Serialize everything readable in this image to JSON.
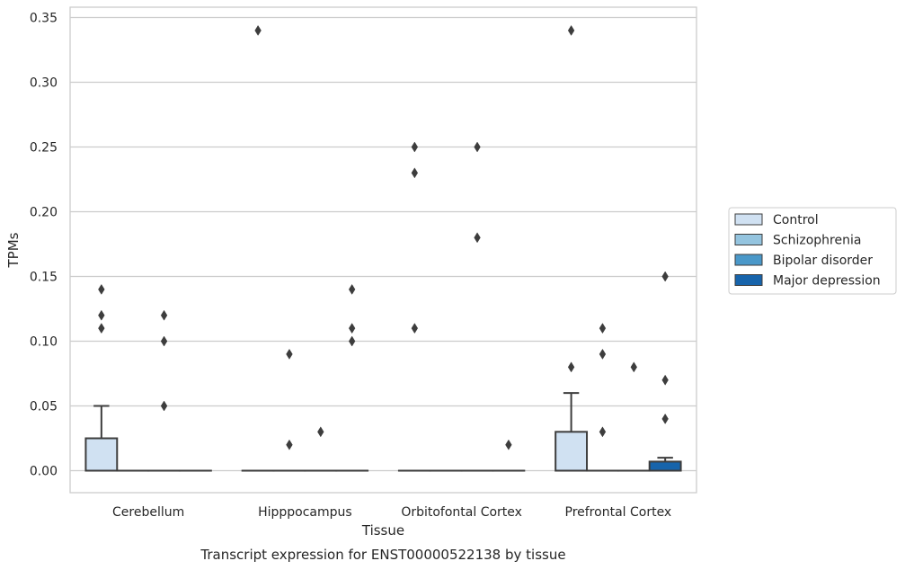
{
  "chart_data": {
    "type": "box",
    "title": "Transcript expression for ENST00000522138 by tissue",
    "xlabel": "Tissue",
    "ylabel": "TPMs",
    "ylim": [
      -0.017,
      0.358
    ],
    "yticks": [
      "0.00",
      "0.05",
      "0.10",
      "0.15",
      "0.20",
      "0.25",
      "0.30",
      "0.35"
    ],
    "grid": "horizontal",
    "legend_position": "right",
    "categories": [
      "Cerebellum",
      "Hipppocampus",
      "Orbitofontal Cortex",
      "Prefrontal Cortex"
    ],
    "series": [
      {
        "name": "Control",
        "color": "#d0e1f2",
        "boxes": [
          {
            "q1": 0,
            "median": 0,
            "q3": 0.025,
            "whisker_low": 0,
            "whisker_high": 0.05,
            "outliers": [
              0.11,
              0.12,
              0.14
            ]
          },
          {
            "q1": 0,
            "median": 0,
            "q3": 0,
            "whisker_low": 0,
            "whisker_high": 0,
            "outliers": [
              0.34
            ]
          },
          {
            "q1": 0,
            "median": 0,
            "q3": 0,
            "whisker_low": 0,
            "whisker_high": 0,
            "outliers": [
              0.11,
              0.23,
              0.25
            ]
          },
          {
            "q1": 0,
            "median": 0,
            "q3": 0.03,
            "whisker_low": 0,
            "whisker_high": 0.06,
            "outliers": [
              0.08,
              0.34
            ]
          }
        ]
      },
      {
        "name": "Schizophrenia",
        "color": "#94c4df",
        "boxes": [
          {
            "q1": 0,
            "median": 0,
            "q3": 0,
            "whisker_low": 0,
            "whisker_high": 0,
            "outliers": []
          },
          {
            "q1": 0,
            "median": 0,
            "q3": 0,
            "whisker_low": 0,
            "whisker_high": 0,
            "outliers": [
              0.02,
              0.09
            ]
          },
          {
            "q1": 0,
            "median": 0,
            "q3": 0,
            "whisker_low": 0,
            "whisker_high": 0,
            "outliers": []
          },
          {
            "q1": 0,
            "median": 0,
            "q3": 0,
            "whisker_low": 0,
            "whisker_high": 0,
            "outliers": [
              0.03,
              0.09,
              0.11
            ]
          }
        ]
      },
      {
        "name": "Bipolar disorder",
        "color": "#4a98c9",
        "boxes": [
          {
            "q1": 0,
            "median": 0,
            "q3": 0,
            "whisker_low": 0,
            "whisker_high": 0,
            "outliers": [
              0.05,
              0.1,
              0.12
            ]
          },
          {
            "q1": 0,
            "median": 0,
            "q3": 0,
            "whisker_low": 0,
            "whisker_high": 0,
            "outliers": [
              0.03
            ]
          },
          {
            "q1": 0,
            "median": 0,
            "q3": 0,
            "whisker_low": 0,
            "whisker_high": 0,
            "outliers": [
              0.18,
              0.25
            ]
          },
          {
            "q1": 0,
            "median": 0,
            "q3": 0,
            "whisker_low": 0,
            "whisker_high": 0,
            "outliers": [
              0.08
            ]
          }
        ]
      },
      {
        "name": "Major depression",
        "color": "#1764ab",
        "boxes": [
          {
            "q1": 0,
            "median": 0,
            "q3": 0,
            "whisker_low": 0,
            "whisker_high": 0,
            "outliers": []
          },
          {
            "q1": 0,
            "median": 0,
            "q3": 0,
            "whisker_low": 0,
            "whisker_high": 0,
            "outliers": [
              0.1,
              0.11,
              0.14
            ]
          },
          {
            "q1": 0,
            "median": 0,
            "q3": 0,
            "whisker_low": 0,
            "whisker_high": 0,
            "outliers": [
              0.02
            ]
          },
          {
            "q1": 0,
            "median": 0,
            "q3": 0.007,
            "whisker_low": 0,
            "whisker_high": 0.01,
            "outliers": [
              0.04,
              0.07,
              0.15
            ]
          }
        ]
      }
    ]
  }
}
